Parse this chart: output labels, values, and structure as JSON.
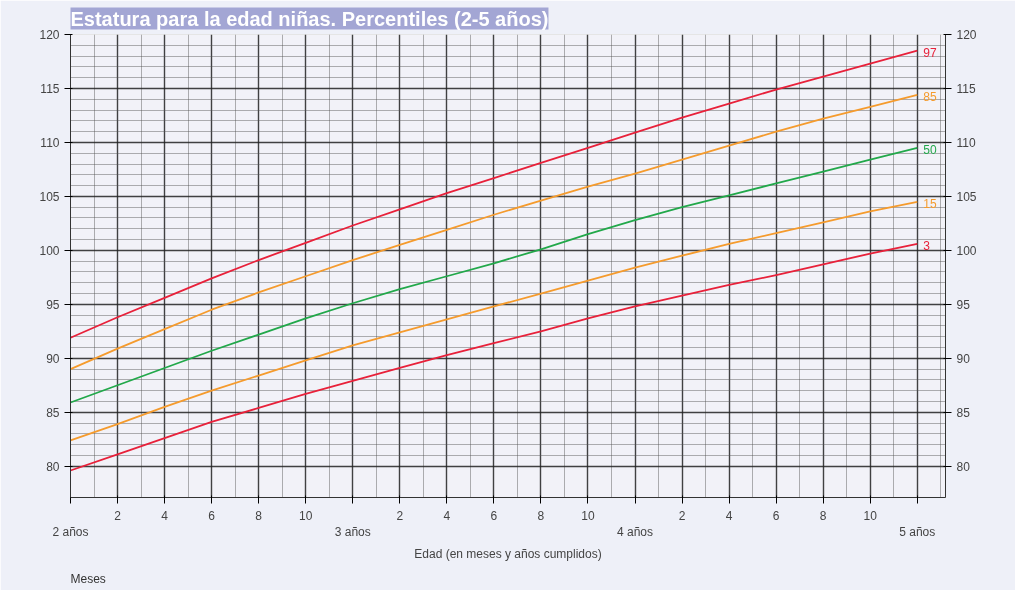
{
  "chart_data": {
    "type": "line",
    "title": "Estatura para la edad niñas. Percentiles (2-5 años)",
    "xlabel": "Edad (en meses y años cumplidos)",
    "annotations": [
      "Meses"
    ],
    "categories": [
      "2 años",
      "2",
      "4",
      "6",
      "8",
      "10",
      "3 años",
      "2",
      "4",
      "6",
      "8",
      "10",
      "4 años",
      "2",
      "4",
      "6",
      "8",
      "10",
      "5 años"
    ],
    "series": [
      {
        "name": "97",
        "color": "#e8213a",
        "values": [
          91.9,
          93.8,
          95.6,
          97.4,
          99.1,
          100.7,
          102.3,
          103.8,
          105.3,
          106.7,
          108.1,
          109.5,
          110.9,
          112.3,
          113.6,
          114.9,
          116.1,
          117.3,
          118.5
        ]
      },
      {
        "name": "85",
        "color": "#f59b2d",
        "values": [
          89.0,
          90.9,
          92.7,
          94.5,
          96.1,
          97.6,
          99.1,
          100.5,
          101.9,
          103.3,
          104.6,
          105.9,
          107.1,
          108.4,
          109.7,
          111.0,
          112.2,
          113.3,
          114.4
        ]
      },
      {
        "name": "50",
        "color": "#22a84a",
        "values": [
          85.9,
          87.5,
          89.1,
          90.7,
          92.2,
          93.7,
          95.1,
          96.4,
          97.6,
          98.8,
          100.1,
          101.5,
          102.8,
          104.0,
          105.1,
          106.2,
          107.3,
          108.4,
          109.5
        ]
      },
      {
        "name": "15",
        "color": "#f59b2d",
        "values": [
          82.4,
          83.9,
          85.5,
          87.0,
          88.4,
          89.8,
          91.2,
          92.4,
          93.6,
          94.8,
          96.0,
          97.2,
          98.4,
          99.5,
          100.6,
          101.6,
          102.6,
          103.6,
          104.5
        ]
      },
      {
        "name": "3",
        "color": "#e8213a",
        "values": [
          79.6,
          81.1,
          82.6,
          84.1,
          85.4,
          86.7,
          87.9,
          89.1,
          90.3,
          91.4,
          92.5,
          93.7,
          94.8,
          95.8,
          96.8,
          97.7,
          98.7,
          99.7,
          100.6
        ]
      }
    ],
    "ylim": [
      77.1,
      120
    ],
    "yticks": [
      80,
      85,
      90,
      95,
      100,
      105,
      110,
      115,
      120
    ],
    "y2lim": [
      77.1,
      120
    ],
    "y2ticks": [
      80,
      85,
      90,
      95,
      100,
      105,
      110,
      115,
      120
    ],
    "grid": true,
    "marker": "none",
    "line_style": "solid"
  }
}
